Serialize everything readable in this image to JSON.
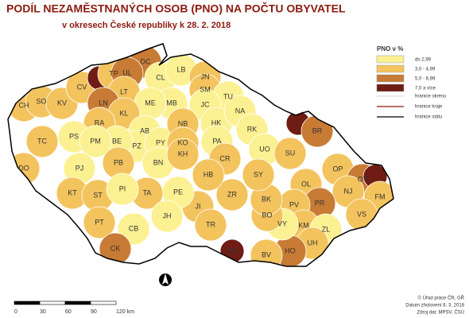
{
  "header": {
    "title": "PODÍL NEZAMĚSTNANÝCH OSOB (PNO) NA POČTU OBYVATEL",
    "subtitle": "v okresech České republiky k 28. 2. 2018"
  },
  "legend": {
    "title": "PNO v %",
    "classes": [
      {
        "label": "do 2,99",
        "color": "#fcf192"
      },
      {
        "label": "3,0 - 4,99",
        "color": "#f3c35e"
      },
      {
        "label": "5,0 - 6,99",
        "color": "#c77b34"
      },
      {
        "label": "7,0 a více",
        "color": "#6e1c14"
      }
    ],
    "lines": [
      {
        "label": "hranice okresu",
        "color": "#ffffff"
      },
      {
        "label": "hranice kraje",
        "color": "#8b1a10"
      },
      {
        "label": "hranice státu",
        "color": "#000000"
      }
    ]
  },
  "districts": [
    {
      "label": "CH",
      "class": 1
    },
    {
      "label": "SO",
      "class": 1
    },
    {
      "label": "KV",
      "class": 1
    },
    {
      "label": "CV",
      "class": 1
    },
    {
      "label": null,
      "class": 3
    },
    {
      "label": "TP",
      "class": 1
    },
    {
      "label": "DC",
      "class": 2
    },
    {
      "label": "UL",
      "class": 2
    },
    {
      "label": "LT",
      "class": 1
    },
    {
      "label": "LN",
      "class": 2
    },
    {
      "label": "CL",
      "class": 0
    },
    {
      "label": "LB",
      "class": 0
    },
    {
      "label": "JN",
      "class": 1
    },
    {
      "label": "SM",
      "class": 1
    },
    {
      "label": "TU",
      "class": 0
    },
    {
      "label": "JC",
      "class": 0
    },
    {
      "label": "MB",
      "class": 0
    },
    {
      "label": "ME",
      "class": 0
    },
    {
      "label": "KL",
      "class": 1
    },
    {
      "label": "RA",
      "class": 1
    },
    {
      "label": "AB",
      "class": 0
    },
    {
      "label": "PZ",
      "class": 0
    },
    {
      "label": "PY",
      "class": 0
    },
    {
      "label": "BE",
      "class": 0
    },
    {
      "label": "PS",
      "class": 0
    },
    {
      "label": "PM",
      "class": 0
    },
    {
      "label": "PJ",
      "class": 0
    },
    {
      "label": "TC",
      "class": 1
    },
    {
      "label": "DO",
      "class": 1
    },
    {
      "label": "KT",
      "class": 1
    },
    {
      "label": "ST",
      "class": 1
    },
    {
      "label": "PB",
      "class": 1
    },
    {
      "label": "BN",
      "class": 0
    },
    {
      "label": "NB",
      "class": 1
    },
    {
      "label": "KO",
      "class": 1
    },
    {
      "label": "KH",
      "class": 1
    },
    {
      "label": "HK",
      "class": 0
    },
    {
      "label": "NA",
      "class": 0
    },
    {
      "label": "RK",
      "class": 0
    },
    {
      "label": "PA",
      "class": 0
    },
    {
      "label": "CR",
      "class": 1
    },
    {
      "label": "UO",
      "class": 0
    },
    {
      "label": "SU",
      "class": 1
    },
    {
      "label": null,
      "class": 3
    },
    {
      "label": "BR",
      "class": 2
    },
    {
      "label": "OP",
      "class": 1
    },
    {
      "label": "OT",
      "class": 2
    },
    {
      "label": null,
      "class": 3
    },
    {
      "label": "FM",
      "class": 1
    },
    {
      "label": "NJ",
      "class": 1
    },
    {
      "label": "OL",
      "class": 1
    },
    {
      "label": "PR",
      "class": 2
    },
    {
      "label": "PV",
      "class": 1
    },
    {
      "label": "KM",
      "class": 1
    },
    {
      "label": "ZL",
      "class": 0
    },
    {
      "label": "VS",
      "class": 1
    },
    {
      "label": "UH",
      "class": 1
    },
    {
      "label": "HO",
      "class": 2
    },
    {
      "label": "BV",
      "class": 1
    },
    {
      "label": "VY",
      "class": 0
    },
    {
      "label": "BO",
      "class": 1
    },
    {
      "label": "BK",
      "class": 1
    },
    {
      "label": "SY",
      "class": 1
    },
    {
      "label": "ZR",
      "class": 1
    },
    {
      "label": "HB",
      "class": 1
    },
    {
      "label": "JI",
      "class": 1
    },
    {
      "label": "TR",
      "class": 1
    },
    {
      "label": "ZN",
      "class": 3
    },
    {
      "label": "PE",
      "class": 0
    },
    {
      "label": "TA",
      "class": 1
    },
    {
      "label": "PI",
      "class": 0
    },
    {
      "label": "JH",
      "class": 0
    },
    {
      "label": "CB",
      "class": 0
    },
    {
      "label": "PT",
      "class": 1
    },
    {
      "label": "CK",
      "class": 2
    }
  ],
  "scale": {
    "labels": [
      "0",
      "30",
      "60",
      "90",
      "120 km"
    ]
  },
  "credits": [
    "© Úřad práce ČR, GŘ",
    "Datum zhotovení 8. 3. 2018",
    "Zdroj dat: MPSV, ČSÚ"
  ]
}
